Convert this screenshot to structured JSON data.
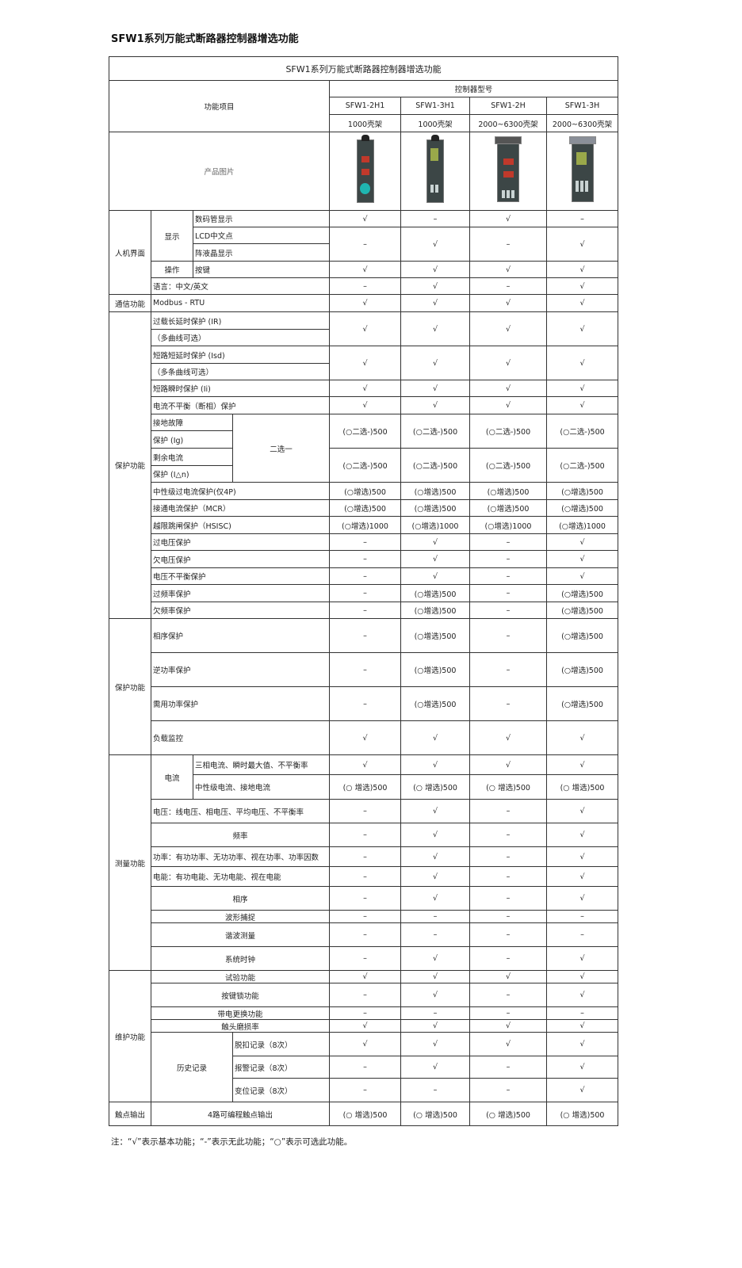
{
  "page_title": "SFW1系列万能式断路器控制器增选功能",
  "table": {
    "title": "SFW1系列万能式断路器控制器增选功能",
    "feature_header": "功能项目",
    "model_header": "控制器型号",
    "models": [
      "SFW1-2H1",
      "SFW1-3H1",
      "SFW1-2H",
      "SFW1-3H"
    ],
    "frames": [
      "1000壳架",
      "1000壳架",
      "2000~6300壳架",
      "2000~6300壳架"
    ],
    "image_label": "产品图片",
    "rows": [
      [
        "人机界面",
        "显示",
        "数码管显示",
        "√",
        "–",
        "√",
        "–"
      ],
      [
        "LCD中文点",
        "–",
        "√",
        "–",
        "√"
      ],
      [
        "阵液晶显示"
      ],
      [
        "操作",
        "按键",
        "√",
        "√",
        "√",
        "√"
      ],
      [
        "语言：中文/英文",
        "–",
        "√",
        "–",
        "√"
      ],
      [
        "通信功能",
        "Modbus - RTU",
        "√",
        "√",
        "√",
        "√"
      ],
      [
        "保护功能",
        "过载长延时保护 (IR)",
        "√",
        "√",
        "√",
        "√"
      ],
      [
        "（多曲线可选）"
      ],
      [
        "短路短延时保护 (Isd)",
        "√",
        "√",
        "√",
        "√"
      ],
      [
        "（多条曲线可选）"
      ],
      [
        "短路瞬时保护 (Ii)",
        "√",
        "√",
        "√",
        "√"
      ],
      [
        "电流不平衡（断相）保护",
        "√",
        "√",
        "√",
        "√"
      ],
      [
        "接地故障",
        "二选一",
        "(○二选-)500",
        "(○二选-)500",
        "(○二选-)500",
        "(○二选-)500"
      ],
      [
        "保护 (Ig)"
      ],
      [
        "剩余电流",
        "(○二选-)500",
        "(○二选-)500",
        "(○二选-)500",
        "(○二选-)500"
      ],
      [
        "保护 (I△n)"
      ],
      [
        "中性级过电流保护(仅4P)",
        "(○增选)500",
        "(○增选)500",
        "(○增选)500",
        "(○增选)500"
      ],
      [
        "接通电流保护（MCR）",
        "(○增选)500",
        "(○增选)500",
        "(○增选)500",
        "(○增选)500"
      ],
      [
        "越限跳闸保护（HSISC)",
        "(○增选)1000",
        "(○增选)1000",
        "(○增选)1000",
        "(○增选)1000"
      ],
      [
        "过电压保护",
        "–",
        "√",
        "–",
        "√"
      ],
      [
        "欠电压保护",
        "–",
        "√",
        "–",
        "√"
      ],
      [
        "电压不平衡保护",
        "–",
        "√",
        "–",
        "√"
      ],
      [
        "过频率保护",
        "–",
        "(○增选)500",
        "–",
        "(○增选)500"
      ],
      [
        "欠频率保护",
        "–",
        "(○增选)500",
        "–",
        "(○增选)500"
      ],
      [
        "保护功能",
        "相序保护",
        "–",
        "(○增选)500",
        "–",
        "(○增选)500"
      ],
      [
        "逆功率保护",
        "–",
        "(○增选)500",
        "–",
        "(○增选)500"
      ],
      [
        "需用功率保护",
        "–",
        "(○增选)500",
        "–",
        "(○增选)500"
      ],
      [
        "负载监控",
        "√",
        "√",
        "√",
        "√"
      ],
      [
        "测量功能",
        "电流",
        "三相电流、瞬时最大值、不平衡率",
        "√",
        "√",
        "√",
        "√"
      ],
      [
        "中性级电流、接地电流",
        "(○ 增选)500",
        "(○ 增选)500",
        "(○ 增选)500",
        "(○ 增选)500"
      ],
      [
        "电压：线电压、相电压、平均电压、不平衡率",
        "–",
        "√",
        "–",
        "√"
      ],
      [
        "频率",
        "–",
        "√",
        "–",
        "√"
      ],
      [
        "功率：有功功率、无功功率、视在功率、功率因数",
        "–",
        "√",
        "–",
        "√"
      ],
      [
        "电能：有功电能、无功电能、视在电能",
        "–",
        "√",
        "–",
        "√"
      ],
      [
        "相序",
        "–",
        "√",
        "–",
        "√"
      ],
      [
        "波形捕捉",
        "–",
        "–",
        "–",
        "–"
      ],
      [
        "谐波测量",
        "–",
        "–",
        "–",
        "–"
      ],
      [
        "系统时钟",
        "–",
        "√",
        "–",
        "√"
      ],
      [
        "维护功能",
        "试验功能",
        "√",
        "√",
        "√",
        "√"
      ],
      [
        "按键锁功能",
        "–",
        "√",
        "–",
        "√"
      ],
      [
        "带电更换功能",
        "–",
        "–",
        "–",
        "–"
      ],
      [
        "触头磨损率",
        "√",
        "√",
        "√",
        "√"
      ],
      [
        "历史记录",
        "脱扣记录（8次）",
        "√",
        "√",
        "√",
        "√"
      ],
      [
        "报警记录（8次）",
        "–",
        "√",
        "–",
        "√"
      ],
      [
        "变位记录（8次）",
        "–",
        "–",
        "–",
        "√"
      ],
      [
        "触点输出",
        "4路可编程触点输出",
        "(○ 增选)500",
        "(○ 增选)500",
        "(○ 增选)500",
        "(○ 增选)500"
      ]
    ]
  },
  "note": "注：“√”表示基本功能；“-”表示无此功能；“○”表示可选此功能。"
}
